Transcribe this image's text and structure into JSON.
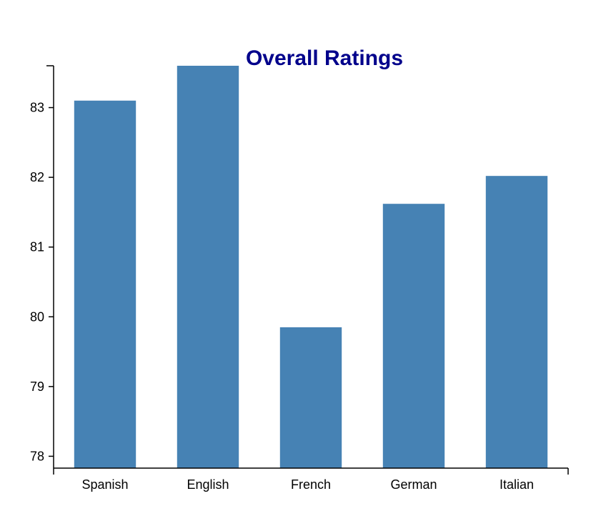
{
  "colors": {
    "bar": "#4682b4",
    "title": "#00008b",
    "axis": "#000000"
  },
  "chart_data": {
    "type": "bar",
    "title": "Overall Ratings",
    "xlabel": "",
    "ylabel": "",
    "categories": [
      "Spanish",
      "English",
      "French",
      "German",
      "Italian"
    ],
    "values": [
      83.1,
      83.6,
      79.85,
      81.62,
      82.02
    ],
    "ylim": [
      77.83,
      83.6
    ],
    "yticks": [
      "78",
      "79",
      "80",
      "81",
      "82",
      "83"
    ],
    "grid": false,
    "legend": "none"
  }
}
